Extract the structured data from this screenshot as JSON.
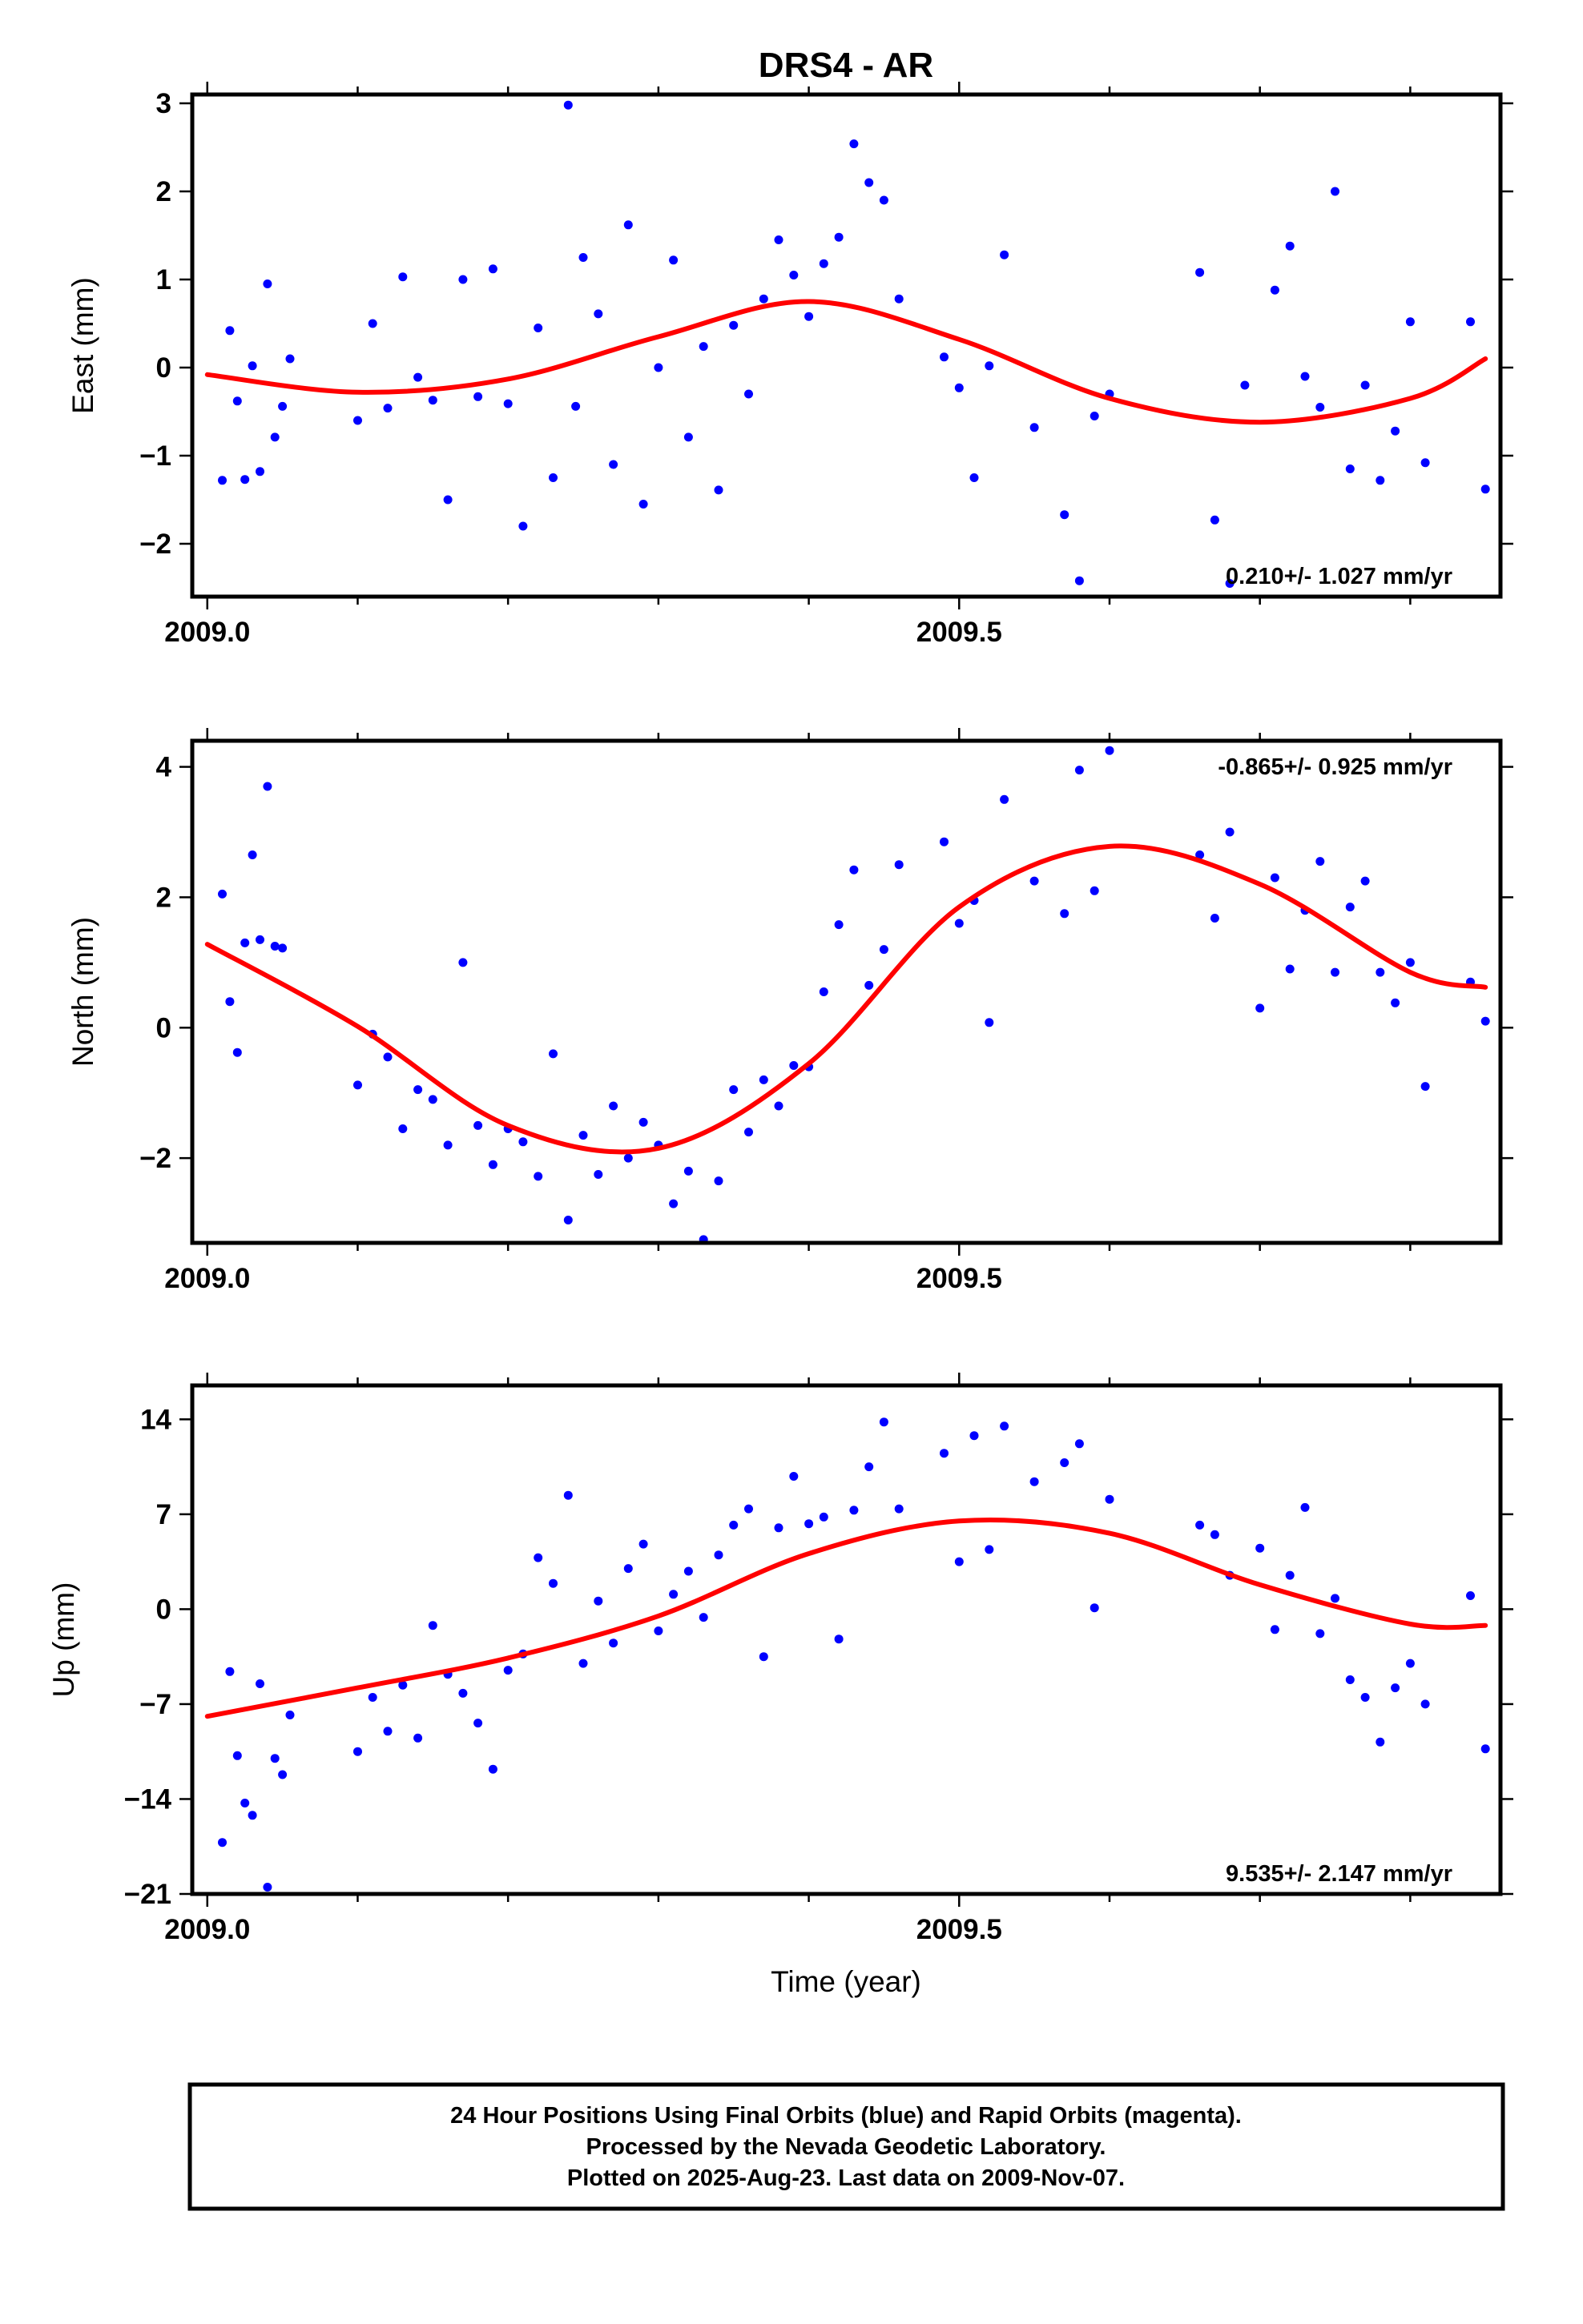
{
  "title": "DRS4 - AR",
  "footer": {
    "lines": [
      "24 Hour Positions Using Final Orbits (blue) and Rapid Orbits (magenta).",
      "Processed by the Nevada Geodetic Laboratory.",
      "Plotted on 2025-Aug-23. Last data on 2009-Nov-07."
    ]
  },
  "colors": {
    "data": "#0000ff",
    "fit": "#ff0000",
    "frame": "#000000"
  },
  "chart_data": [
    {
      "type": "scatter",
      "xlabel": "",
      "ylabel": "East (mm)",
      "xlim": [
        2008.99,
        2009.86
      ],
      "ylim": [
        -2.6,
        3.1
      ],
      "xticks": [
        2009.0,
        2009.5
      ],
      "xtick_labels": [
        "2009.0",
        "2009.5"
      ],
      "yticks": [
        -2,
        -1,
        0,
        1,
        2,
        3
      ],
      "ytick_labels": [
        "−2",
        "−1",
        "0",
        "1",
        "2",
        "3"
      ],
      "rate": "0.210+/- 1.027 mm/yr",
      "rate_position": "bottom-right",
      "grid": false,
      "fit": {
        "x": [
          2009.0,
          2009.1,
          2009.2,
          2009.3,
          2009.4,
          2009.5,
          2009.6,
          2009.7,
          2009.8,
          2009.85
        ],
        "y": [
          -0.08,
          -0.28,
          -0.13,
          0.35,
          0.75,
          0.32,
          -0.35,
          -0.62,
          -0.35,
          0.1
        ]
      },
      "points": {
        "x": [
          2009.01,
          2009.015,
          2009.02,
          2009.025,
          2009.03,
          2009.035,
          2009.04,
          2009.045,
          2009.05,
          2009.055,
          2009.1,
          2009.11,
          2009.12,
          2009.13,
          2009.14,
          2009.15,
          2009.16,
          2009.17,
          2009.18,
          2009.19,
          2009.2,
          2009.21,
          2009.22,
          2009.23,
          2009.24,
          2009.245,
          2009.25,
          2009.26,
          2009.27,
          2009.28,
          2009.29,
          2009.3,
          2009.31,
          2009.32,
          2009.33,
          2009.34,
          2009.35,
          2009.36,
          2009.37,
          2009.38,
          2009.39,
          2009.4,
          2009.41,
          2009.42,
          2009.43,
          2009.44,
          2009.45,
          2009.46,
          2009.49,
          2009.5,
          2009.51,
          2009.52,
          2009.53,
          2009.55,
          2009.57,
          2009.58,
          2009.59,
          2009.6,
          2009.66,
          2009.67,
          2009.68,
          2009.69,
          2009.71,
          2009.72,
          2009.73,
          2009.74,
          2009.75,
          2009.76,
          2009.77,
          2009.78,
          2009.79,
          2009.8,
          2009.81,
          2009.84,
          2009.85
        ],
        "y": [
          -1.28,
          0.42,
          -0.38,
          -1.27,
          0.02,
          -1.18,
          0.95,
          -0.79,
          -0.44,
          0.1,
          -0.6,
          0.5,
          -0.46,
          1.03,
          -0.11,
          -0.37,
          -1.5,
          1.0,
          -0.33,
          1.12,
          -0.41,
          -1.8,
          0.45,
          -1.25,
          2.98,
          -0.44,
          1.25,
          0.61,
          -1.1,
          1.62,
          -1.55,
          0.0,
          1.22,
          -0.79,
          0.24,
          -1.39,
          0.48,
          -0.3,
          0.78,
          1.45,
          1.05,
          0.58,
          1.18,
          1.48,
          2.54,
          2.1,
          1.9,
          0.78,
          0.12,
          -0.23,
          -1.25,
          0.02,
          1.28,
          -0.68,
          -1.67,
          -2.42,
          -0.55,
          -0.3,
          1.08,
          -1.73,
          -2.45,
          -0.2,
          0.88,
          1.38,
          -0.1,
          -0.45,
          2.0,
          -1.15,
          -0.2,
          -1.28,
          -0.72,
          0.52,
          -1.08,
          0.52,
          -1.38
        ]
      }
    },
    {
      "type": "scatter",
      "xlabel": "",
      "ylabel": "North (mm)",
      "xlim": [
        2008.99,
        2009.86
      ],
      "ylim": [
        -3.3,
        4.4
      ],
      "xticks": [
        2009.0,
        2009.5
      ],
      "xtick_labels": [
        "2009.0",
        "2009.5"
      ],
      "yticks": [
        -2,
        0,
        2,
        4
      ],
      "ytick_labels": [
        "−2",
        "0",
        "2",
        "4"
      ],
      "rate": "-0.865+/- 0.925 mm/yr",
      "rate_position": "top-right",
      "grid": false,
      "fit": {
        "x": [
          2009.0,
          2009.1,
          2009.2,
          2009.3,
          2009.4,
          2009.5,
          2009.6,
          2009.7,
          2009.8,
          2009.85
        ],
        "y": [
          1.28,
          0.02,
          -1.5,
          -1.85,
          -0.55,
          1.85,
          2.78,
          2.2,
          0.85,
          0.62
        ]
      },
      "points": {
        "x": [
          2009.01,
          2009.015,
          2009.02,
          2009.025,
          2009.03,
          2009.035,
          2009.04,
          2009.045,
          2009.05,
          2009.1,
          2009.11,
          2009.12,
          2009.13,
          2009.14,
          2009.15,
          2009.16,
          2009.17,
          2009.18,
          2009.19,
          2009.2,
          2009.21,
          2009.22,
          2009.23,
          2009.24,
          2009.25,
          2009.26,
          2009.27,
          2009.28,
          2009.29,
          2009.3,
          2009.31,
          2009.32,
          2009.33,
          2009.34,
          2009.35,
          2009.36,
          2009.37,
          2009.38,
          2009.39,
          2009.4,
          2009.41,
          2009.42,
          2009.43,
          2009.44,
          2009.45,
          2009.46,
          2009.49,
          2009.5,
          2009.51,
          2009.52,
          2009.53,
          2009.55,
          2009.57,
          2009.58,
          2009.59,
          2009.6,
          2009.66,
          2009.67,
          2009.68,
          2009.7,
          2009.71,
          2009.72,
          2009.73,
          2009.74,
          2009.75,
          2009.76,
          2009.77,
          2009.78,
          2009.79,
          2009.8,
          2009.81,
          2009.84,
          2009.85
        ],
        "y": [
          2.05,
          0.4,
          -0.38,
          1.3,
          2.65,
          1.35,
          3.7,
          1.25,
          1.22,
          -0.88,
          -0.1,
          -0.45,
          -1.55,
          -0.95,
          -1.1,
          -1.8,
          1.0,
          -1.5,
          -2.1,
          -1.55,
          -1.75,
          -2.28,
          -0.4,
          -2.95,
          -1.65,
          -2.25,
          -1.2,
          -2.0,
          -1.45,
          -1.8,
          -2.7,
          -2.2,
          -3.25,
          -2.35,
          -0.95,
          -1.6,
          -0.8,
          -1.2,
          -0.58,
          -0.6,
          0.55,
          1.58,
          2.42,
          0.65,
          1.2,
          2.5,
          2.85,
          1.6,
          1.95,
          0.08,
          3.5,
          2.25,
          1.75,
          3.95,
          2.1,
          4.25,
          2.65,
          1.68,
          3.0,
          0.3,
          2.3,
          0.9,
          1.8,
          2.55,
          0.85,
          1.85,
          2.25,
          0.85,
          0.38,
          1.0,
          -0.9,
          0.7,
          0.1
        ]
      }
    },
    {
      "type": "scatter",
      "xlabel": "Time (year)",
      "ylabel": "Up (mm)",
      "xlim": [
        2008.99,
        2009.86
      ],
      "ylim": [
        -21,
        16.5
      ],
      "xticks": [
        2009.0,
        2009.5
      ],
      "xtick_labels": [
        "2009.0",
        "2009.5"
      ],
      "yticks": [
        -21,
        -14,
        -7,
        0,
        7,
        14
      ],
      "ytick_labels": [
        "−21",
        "−14",
        "−7",
        "0",
        "7",
        "14"
      ],
      "rate": "9.535+/- 2.147 mm/yr",
      "rate_position": "bottom-right",
      "grid": false,
      "fit": {
        "x": [
          2009.0,
          2009.1,
          2009.2,
          2009.3,
          2009.4,
          2009.5,
          2009.6,
          2009.7,
          2009.8,
          2009.85
        ],
        "y": [
          -7.9,
          -5.8,
          -3.6,
          -0.5,
          4.1,
          6.5,
          5.6,
          1.8,
          -1.1,
          -1.2
        ]
      },
      "points": {
        "x": [
          2009.01,
          2009.015,
          2009.02,
          2009.025,
          2009.03,
          2009.035,
          2009.04,
          2009.045,
          2009.05,
          2009.055,
          2009.1,
          2009.11,
          2009.12,
          2009.13,
          2009.14,
          2009.15,
          2009.16,
          2009.17,
          2009.18,
          2009.19,
          2009.2,
          2009.21,
          2009.22,
          2009.23,
          2009.24,
          2009.25,
          2009.26,
          2009.27,
          2009.28,
          2009.29,
          2009.3,
          2009.31,
          2009.32,
          2009.33,
          2009.34,
          2009.35,
          2009.36,
          2009.37,
          2009.38,
          2009.39,
          2009.4,
          2009.41,
          2009.42,
          2009.43,
          2009.44,
          2009.45,
          2009.46,
          2009.49,
          2009.5,
          2009.51,
          2009.52,
          2009.53,
          2009.55,
          2009.57,
          2009.58,
          2009.59,
          2009.6,
          2009.66,
          2009.67,
          2009.68,
          2009.7,
          2009.71,
          2009.72,
          2009.73,
          2009.74,
          2009.75,
          2009.76,
          2009.77,
          2009.78,
          2009.79,
          2009.8,
          2009.81,
          2009.84,
          2009.85
        ],
        "y": [
          -17.2,
          -4.6,
          -10.8,
          -14.3,
          -15.2,
          -5.5,
          -20.5,
          -11.0,
          -12.2,
          -7.8,
          -10.5,
          -6.5,
          -9.0,
          -5.6,
          -9.5,
          -1.2,
          -4.8,
          -6.2,
          -8.4,
          -11.8,
          -4.5,
          -3.3,
          3.8,
          1.9,
          8.4,
          -4.0,
          0.6,
          -2.5,
          3.0,
          4.8,
          -1.6,
          1.1,
          2.8,
          -0.6,
          4.0,
          6.2,
          7.4,
          -3.5,
          6.0,
          9.8,
          6.3,
          6.8,
          -2.2,
          7.3,
          10.5,
          13.8,
          7.4,
          11.5,
          3.5,
          12.8,
          4.4,
          13.5,
          9.4,
          10.8,
          12.2,
          0.1,
          8.1,
          6.2,
          5.5,
          2.5,
          4.5,
          -1.5,
          2.5,
          7.5,
          -1.8,
          0.8,
          -5.2,
          -6.5,
          -9.8,
          -5.8,
          -4.0,
          -7.0,
          1.0,
          -10.3
        ]
      }
    }
  ]
}
